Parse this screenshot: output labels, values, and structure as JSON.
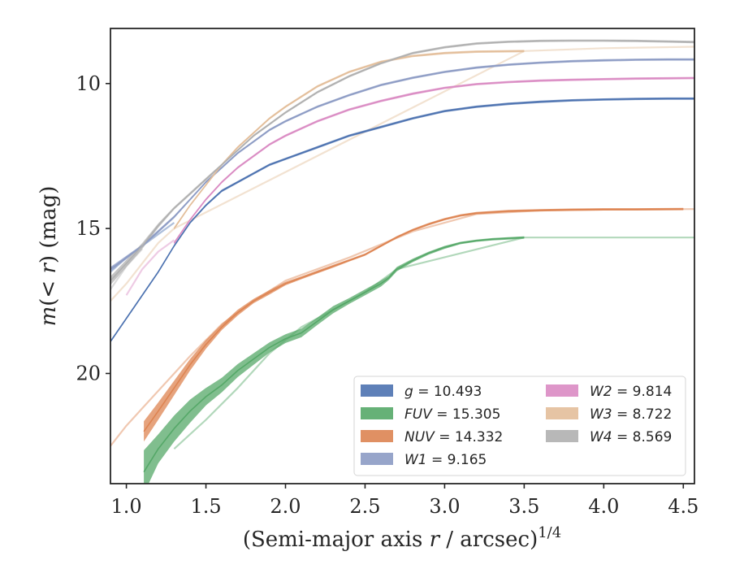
{
  "chart_data": {
    "type": "line",
    "title": "",
    "xlabel_parts": [
      "(Semi-major axis ",
      "r",
      " / arcsec)",
      "1/4"
    ],
    "ylabel_parts": [
      "m",
      "(< ",
      "r",
      ") (mag)"
    ],
    "xlim": [
      0.9,
      4.57
    ],
    "ylim": [
      23.8,
      8.1
    ],
    "y_inverted": true,
    "xticks": [
      "1.0",
      "1.5",
      "2.0",
      "2.5",
      "3.0",
      "3.5",
      "4.0",
      "4.5"
    ],
    "yticks": [
      "10",
      "15",
      "20"
    ],
    "legend_position": "lower-right",
    "legend_columns": 2,
    "grid": false,
    "series": [
      {
        "name": "g",
        "label_value": "10.493",
        "color": "#4c72b0",
        "x": [
          0.9,
          1.0,
          1.1,
          1.2,
          1.3,
          1.4,
          1.5,
          1.6,
          1.7,
          1.8,
          1.9,
          2.0,
          2.2,
          2.4,
          2.6,
          2.8,
          3.0,
          3.2,
          3.4,
          3.6,
          3.8,
          4.0,
          4.2,
          4.4,
          4.57
        ],
        "y": [
          18.9,
          18.1,
          17.3,
          16.5,
          15.6,
          14.8,
          14.2,
          13.7,
          13.4,
          13.1,
          12.8,
          12.6,
          12.2,
          11.8,
          11.5,
          11.2,
          10.95,
          10.8,
          10.7,
          10.63,
          10.58,
          10.55,
          10.53,
          10.52,
          10.52
        ],
        "band_width": [
          0.08,
          0.08,
          0.08,
          0.08,
          0.08,
          0.08,
          0.08,
          0.08,
          0.08,
          0.08,
          0.08,
          0.08,
          0.08,
          0.08,
          0.08,
          0.08,
          0.08,
          0.08,
          0.08,
          0.08,
          0.08,
          0.08,
          0.08,
          0.08,
          0.08
        ]
      },
      {
        "name": "FUV",
        "label_value": "15.305",
        "color": "#55a868",
        "x": [
          1.11,
          1.2,
          1.3,
          1.4,
          1.5,
          1.6,
          1.7,
          1.8,
          1.9,
          2.0,
          2.1,
          2.2,
          2.3,
          2.4,
          2.5,
          2.6,
          2.65,
          2.7,
          2.8,
          2.9,
          3.0,
          3.1,
          3.2,
          3.3,
          3.4,
          3.5
        ],
        "y": [
          23.4,
          22.6,
          21.9,
          21.3,
          20.8,
          20.4,
          19.9,
          19.5,
          19.1,
          18.8,
          18.6,
          18.2,
          17.8,
          17.5,
          17.2,
          16.9,
          16.7,
          16.4,
          16.1,
          15.85,
          15.65,
          15.5,
          15.42,
          15.37,
          15.34,
          15.31
        ],
        "band_width": [
          1.5,
          1.0,
          0.9,
          0.8,
          0.6,
          0.5,
          0.45,
          0.4,
          0.35,
          0.3,
          0.3,
          0.25,
          0.25,
          0.2,
          0.2,
          0.2,
          0.15,
          0.15,
          0.12,
          0.1,
          0.1,
          0.08,
          0.08,
          0.08,
          0.08,
          0.08
        ]
      },
      {
        "name": "NUV",
        "label_value": "14.332",
        "color": "#dd8452",
        "x": [
          1.11,
          1.2,
          1.3,
          1.4,
          1.5,
          1.6,
          1.7,
          1.8,
          1.9,
          2.0,
          2.1,
          2.2,
          2.3,
          2.4,
          2.5,
          2.6,
          2.7,
          2.8,
          2.9,
          3.0,
          3.1,
          3.2,
          3.4,
          3.6,
          3.8,
          4.0,
          4.2,
          4.5
        ],
        "y": [
          22.0,
          21.3,
          20.5,
          19.7,
          19.0,
          18.4,
          17.9,
          17.5,
          17.2,
          16.9,
          16.7,
          16.5,
          16.3,
          16.1,
          15.9,
          15.6,
          15.3,
          15.05,
          14.85,
          14.68,
          14.55,
          14.47,
          14.4,
          14.37,
          14.35,
          14.34,
          14.34,
          14.33
        ],
        "band_width": [
          0.7,
          0.6,
          0.5,
          0.4,
          0.3,
          0.2,
          0.2,
          0.15,
          0.15,
          0.12,
          0.1,
          0.1,
          0.1,
          0.08,
          0.08,
          0.08,
          0.08,
          0.08,
          0.08,
          0.08,
          0.08,
          0.08,
          0.08,
          0.08,
          0.08,
          0.08,
          0.08,
          0.08
        ]
      },
      {
        "name": "W1",
        "label_value": "9.165",
        "color": "#8c9bc4",
        "x": [
          0.9,
          1.0,
          1.1,
          1.2,
          1.3,
          1.4,
          1.5,
          1.6,
          1.7,
          1.8,
          1.9,
          2.0,
          2.2,
          2.4,
          2.6,
          2.8,
          3.0,
          3.2,
          3.4,
          3.6,
          3.8,
          4.0,
          4.2,
          4.4,
          4.57
        ],
        "y": [
          16.4,
          16.0,
          15.6,
          15.1,
          14.6,
          14.0,
          13.4,
          12.9,
          12.4,
          12.0,
          11.6,
          11.3,
          10.8,
          10.4,
          10.05,
          9.8,
          9.6,
          9.45,
          9.35,
          9.28,
          9.23,
          9.2,
          9.18,
          9.17,
          9.17
        ],
        "band_width": [
          0.15,
          0.12,
          0.1,
          0.1,
          0.1,
          0.08,
          0.08,
          0.08,
          0.08,
          0.08,
          0.08,
          0.08,
          0.08,
          0.08,
          0.08,
          0.08,
          0.08,
          0.08,
          0.08,
          0.08,
          0.08,
          0.08,
          0.08,
          0.08,
          0.08
        ]
      },
      {
        "name": "W2",
        "label_value": "9.814",
        "color": "#da8bc3",
        "x": [
          1.3,
          1.4,
          1.5,
          1.6,
          1.7,
          1.8,
          1.9,
          2.0,
          2.2,
          2.4,
          2.6,
          2.8,
          3.0,
          3.2,
          3.4,
          3.6,
          3.8,
          4.0,
          4.2,
          4.4,
          4.57
        ],
        "y": [
          15.5,
          14.7,
          14.0,
          13.4,
          12.9,
          12.5,
          12.1,
          11.8,
          11.3,
          10.9,
          10.6,
          10.35,
          10.15,
          10.02,
          9.95,
          9.9,
          9.87,
          9.85,
          9.83,
          9.82,
          9.81
        ],
        "band_width": [
          0.1,
          0.08,
          0.08,
          0.08,
          0.08,
          0.08,
          0.08,
          0.08,
          0.08,
          0.08,
          0.08,
          0.08,
          0.08,
          0.08,
          0.08,
          0.08,
          0.08,
          0.08,
          0.08,
          0.08,
          0.08
        ]
      },
      {
        "name": "W3",
        "label_value": "8.722",
        "color": "#e3be9a",
        "x": [
          1.3,
          1.4,
          1.5,
          1.6,
          1.7,
          1.8,
          1.9,
          2.0,
          2.2,
          2.4,
          2.6,
          2.8,
          3.0,
          3.2,
          3.5
        ],
        "y": [
          15.0,
          14.2,
          13.5,
          12.8,
          12.2,
          11.7,
          11.2,
          10.8,
          10.1,
          9.6,
          9.25,
          9.05,
          8.95,
          8.9,
          8.88
        ],
        "band_width": [
          0.1,
          0.08,
          0.08,
          0.08,
          0.08,
          0.08,
          0.08,
          0.08,
          0.08,
          0.08,
          0.08,
          0.08,
          0.08,
          0.08,
          0.08
        ]
      },
      {
        "name": "W4",
        "label_value": "8.569",
        "color": "#b0b0b0",
        "x": [
          0.9,
          1.0,
          1.1,
          1.2,
          1.3,
          1.4,
          1.5,
          1.6,
          1.7,
          1.8,
          1.9,
          2.0,
          2.2,
          2.4,
          2.6,
          2.8,
          3.0,
          3.2,
          3.4,
          3.6,
          3.8,
          4.0,
          4.2,
          4.4,
          4.57
        ],
        "y": [
          16.8,
          16.2,
          15.6,
          14.9,
          14.3,
          13.8,
          13.3,
          12.8,
          12.3,
          11.8,
          11.4,
          11.0,
          10.3,
          9.75,
          9.3,
          8.95,
          8.75,
          8.62,
          8.56,
          8.53,
          8.52,
          8.52,
          8.53,
          8.55,
          8.57
        ],
        "band_width": [
          0.3,
          0.25,
          0.2,
          0.15,
          0.1,
          0.1,
          0.1,
          0.08,
          0.08,
          0.08,
          0.08,
          0.08,
          0.08,
          0.08,
          0.08,
          0.08,
          0.08,
          0.08,
          0.08,
          0.08,
          0.08,
          0.08,
          0.08,
          0.08,
          0.08
        ]
      }
    ],
    "faint_extrapolations": [
      {
        "name": "g",
        "color": "#4c72b0",
        "x": [
          0.9,
          1.0,
          1.1,
          1.2,
          1.3
        ],
        "y": [
          16.5,
          16.0,
          15.6,
          15.2,
          14.8
        ]
      },
      {
        "name": "FUV",
        "color": "#55a868",
        "x": [
          1.3,
          1.5,
          1.7,
          1.9,
          2.1,
          2.3,
          2.5,
          2.7,
          3.5,
          4.57
        ],
        "y": [
          22.6,
          21.6,
          20.5,
          19.3,
          18.4,
          17.8,
          17.2,
          16.4,
          15.31,
          15.31
        ]
      },
      {
        "name": "NUV",
        "color": "#dd8452",
        "x": [
          0.9,
          1.0,
          1.1,
          1.2,
          1.3,
          1.4,
          1.6,
          1.8,
          2.0,
          2.4,
          2.8,
          3.2,
          3.6,
          4.0,
          4.57
        ],
        "y": [
          22.5,
          21.8,
          21.2,
          20.6,
          20.0,
          19.4,
          18.3,
          17.5,
          16.8,
          16.0,
          15.1,
          14.5,
          14.38,
          14.35,
          14.33
        ]
      },
      {
        "name": "W2",
        "color": "#da8bc3",
        "x": [
          1.0,
          1.1,
          1.2,
          1.3
        ],
        "y": [
          17.3,
          16.4,
          15.8,
          15.4
        ]
      },
      {
        "name": "W3",
        "color": "#e3be9a",
        "x": [
          0.9,
          1.0,
          1.1,
          1.2,
          1.3,
          3.5,
          4.0,
          4.57
        ],
        "y": [
          17.5,
          16.9,
          16.2,
          15.5,
          15.0,
          8.88,
          8.78,
          8.73
        ]
      },
      {
        "name": "W4",
        "color": "#b0b0b0",
        "x": [
          0.9,
          1.0,
          1.1
        ],
        "y": [
          17.1,
          16.3,
          15.7
        ]
      }
    ]
  }
}
